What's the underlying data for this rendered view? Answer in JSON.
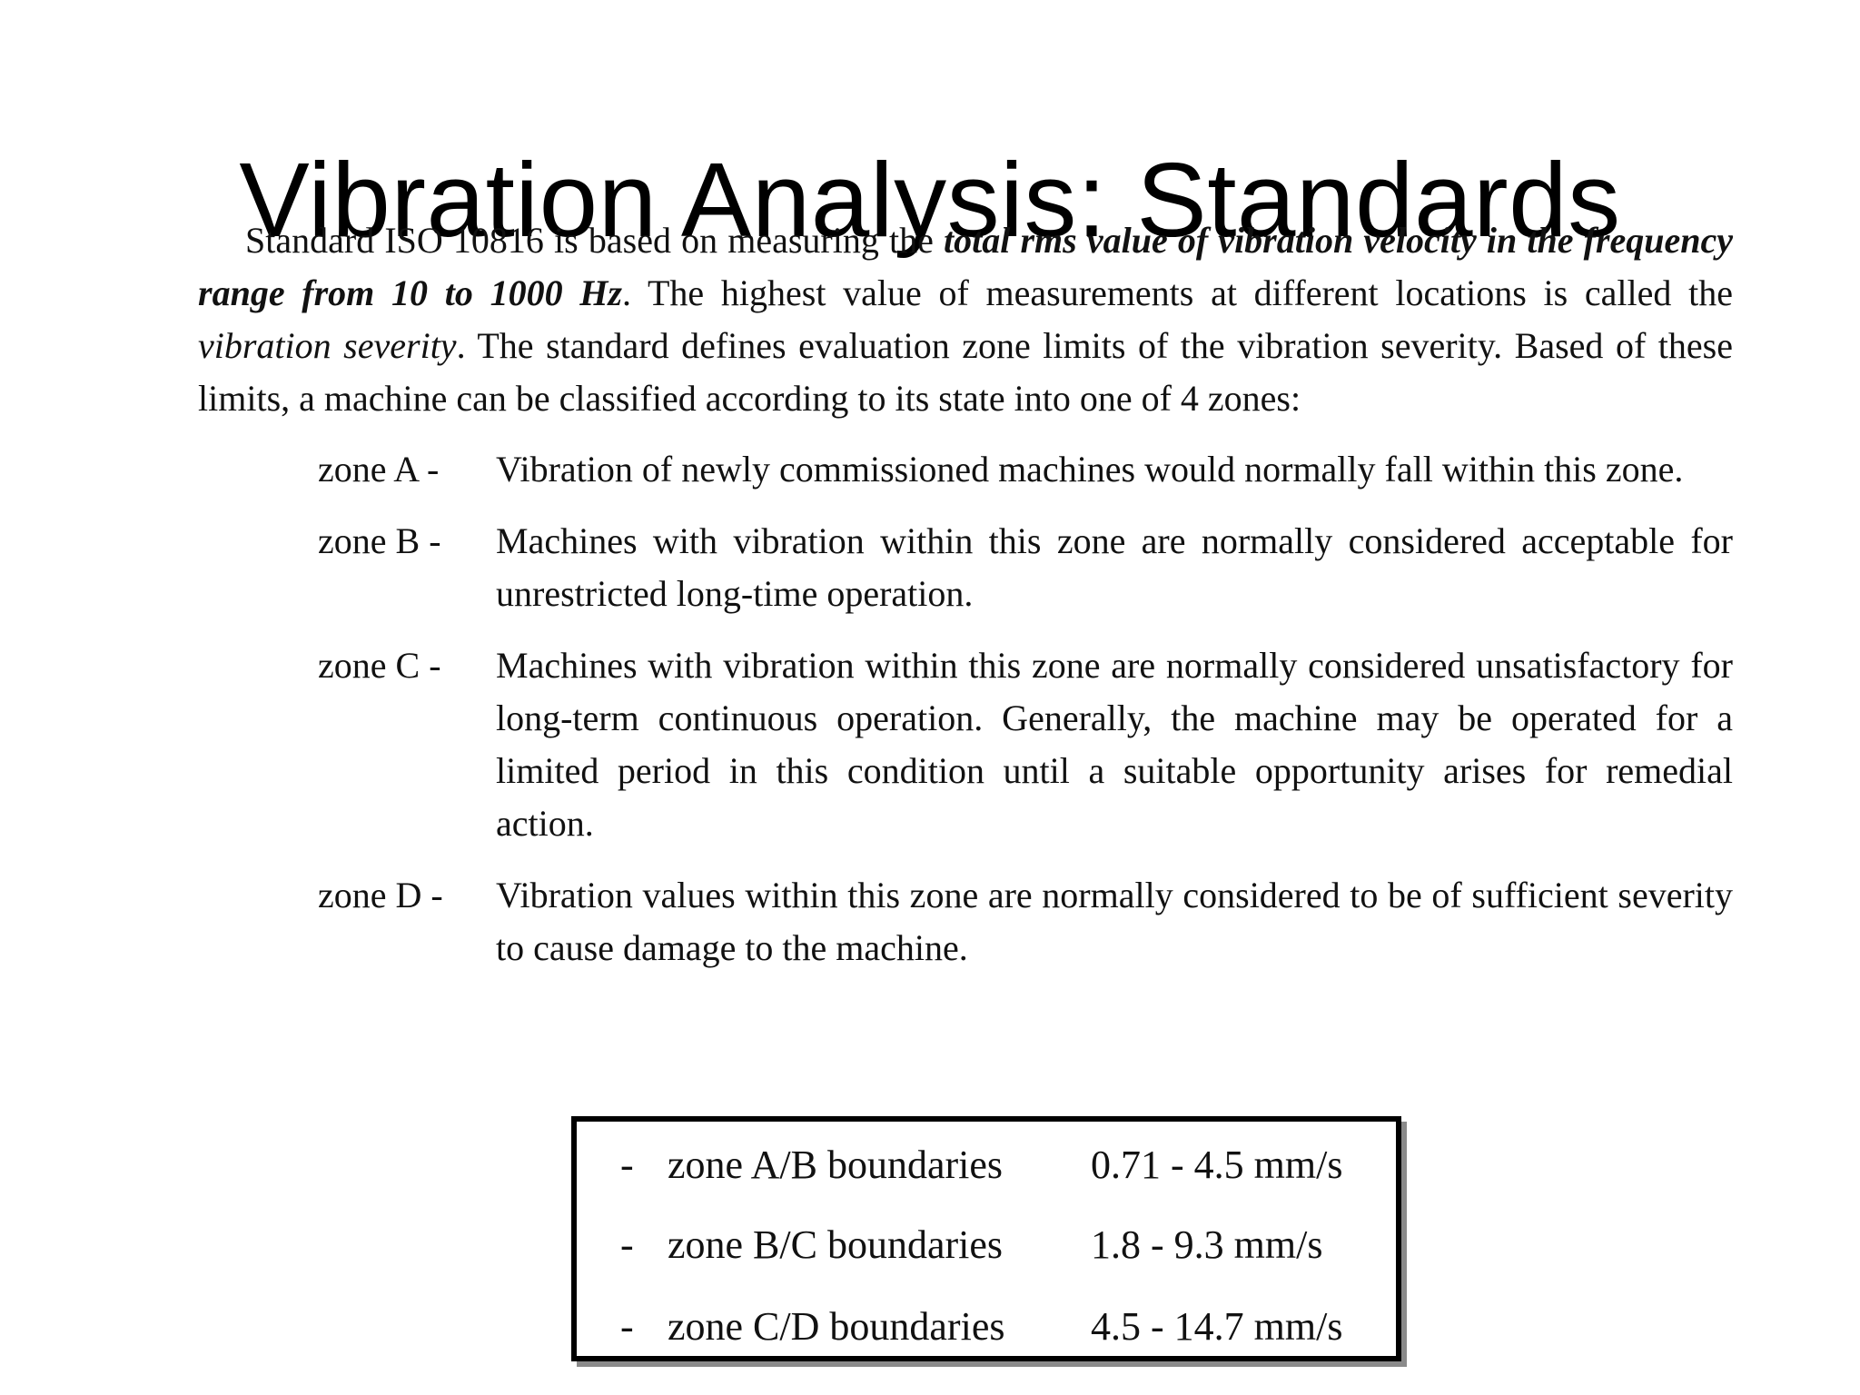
{
  "title": "Vibration Analysis: Standards",
  "intro": {
    "t1": "Standard ISO 10816 is based on measuring the ",
    "t2": "total rms value of vibration velocity in the frequency range from 10 to 1000 Hz",
    "t3": ". The highest value of measurements at different locations is called the ",
    "t4": "vibration severity",
    "t5": ". The standard defines evaluation zone limits of the vibration severity. Based of these limits, a machine can be classified according to its state into one of 4 zones:"
  },
  "zones": [
    {
      "label": "zone A -",
      "text": "Vibration of newly commissioned machines would normally fall within this zone."
    },
    {
      "label": "zone B -",
      "text": "Machines with vibration within this zone are normally considered acceptable for unrestricted long-time operation."
    },
    {
      "label": "zone C -",
      "text": "Machines with vibration within this zone are normally considered unsatisfactory for long-term continuous operation. Generally, the machine may be operated for a limited period in this condition until a suitable opportunity arises for remedial action."
    },
    {
      "label": "zone D -",
      "text": "Vibration values within this zone are normally considered to be of sufficient severity to cause damage to the machine."
    }
  ],
  "boundaries": [
    {
      "dash": "-",
      "label": "zone A/B boundaries",
      "range": "0.71 - 4.5 mm/s"
    },
    {
      "dash": "-",
      "label": "zone B/C boundaries",
      "range": "1.8 - 9.3 mm/s"
    },
    {
      "dash": "-",
      "label": "zone C/D boundaries",
      "range": "4.5 - 14.7 mm/s"
    }
  ]
}
